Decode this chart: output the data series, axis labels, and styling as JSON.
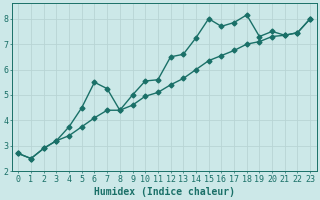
{
  "title": "",
  "xlabel": "Humidex (Indice chaleur)",
  "ylabel": "",
  "bg_color": "#cce8e8",
  "line_color": "#1a7068",
  "grid_color": "#b8d4d4",
  "xlim": [
    -0.5,
    23.5
  ],
  "ylim": [
    2.0,
    8.6
  ],
  "yticks": [
    2,
    3,
    4,
    5,
    6,
    7,
    8
  ],
  "xticks": [
    0,
    1,
    2,
    3,
    4,
    5,
    6,
    7,
    8,
    9,
    10,
    11,
    12,
    13,
    14,
    15,
    16,
    17,
    18,
    19,
    20,
    21,
    22,
    23
  ],
  "x_data": [
    0,
    1,
    2,
    3,
    4,
    5,
    6,
    7,
    8,
    9,
    10,
    11,
    12,
    13,
    14,
    15,
    16,
    17,
    18,
    19,
    20,
    21,
    22,
    23
  ],
  "y_line1": [
    2.7,
    2.5,
    2.9,
    3.2,
    3.75,
    4.5,
    5.5,
    5.25,
    4.4,
    5.0,
    5.55,
    5.6,
    6.5,
    6.6,
    7.25,
    8.0,
    7.7,
    7.85,
    8.15,
    7.3,
    7.5,
    7.35,
    7.45,
    8.0
  ],
  "y_line2": [
    2.7,
    2.5,
    2.9,
    3.2,
    3.4,
    3.75,
    4.1,
    4.4,
    4.4,
    4.6,
    4.95,
    5.1,
    5.4,
    5.65,
    6.0,
    6.35,
    6.55,
    6.75,
    7.0,
    7.1,
    7.3,
    7.35,
    7.45,
    8.0
  ],
  "marker": "D",
  "marker_size": 2.5,
  "line_width": 1.0,
  "font_size_label": 7,
  "font_size_tick": 6
}
